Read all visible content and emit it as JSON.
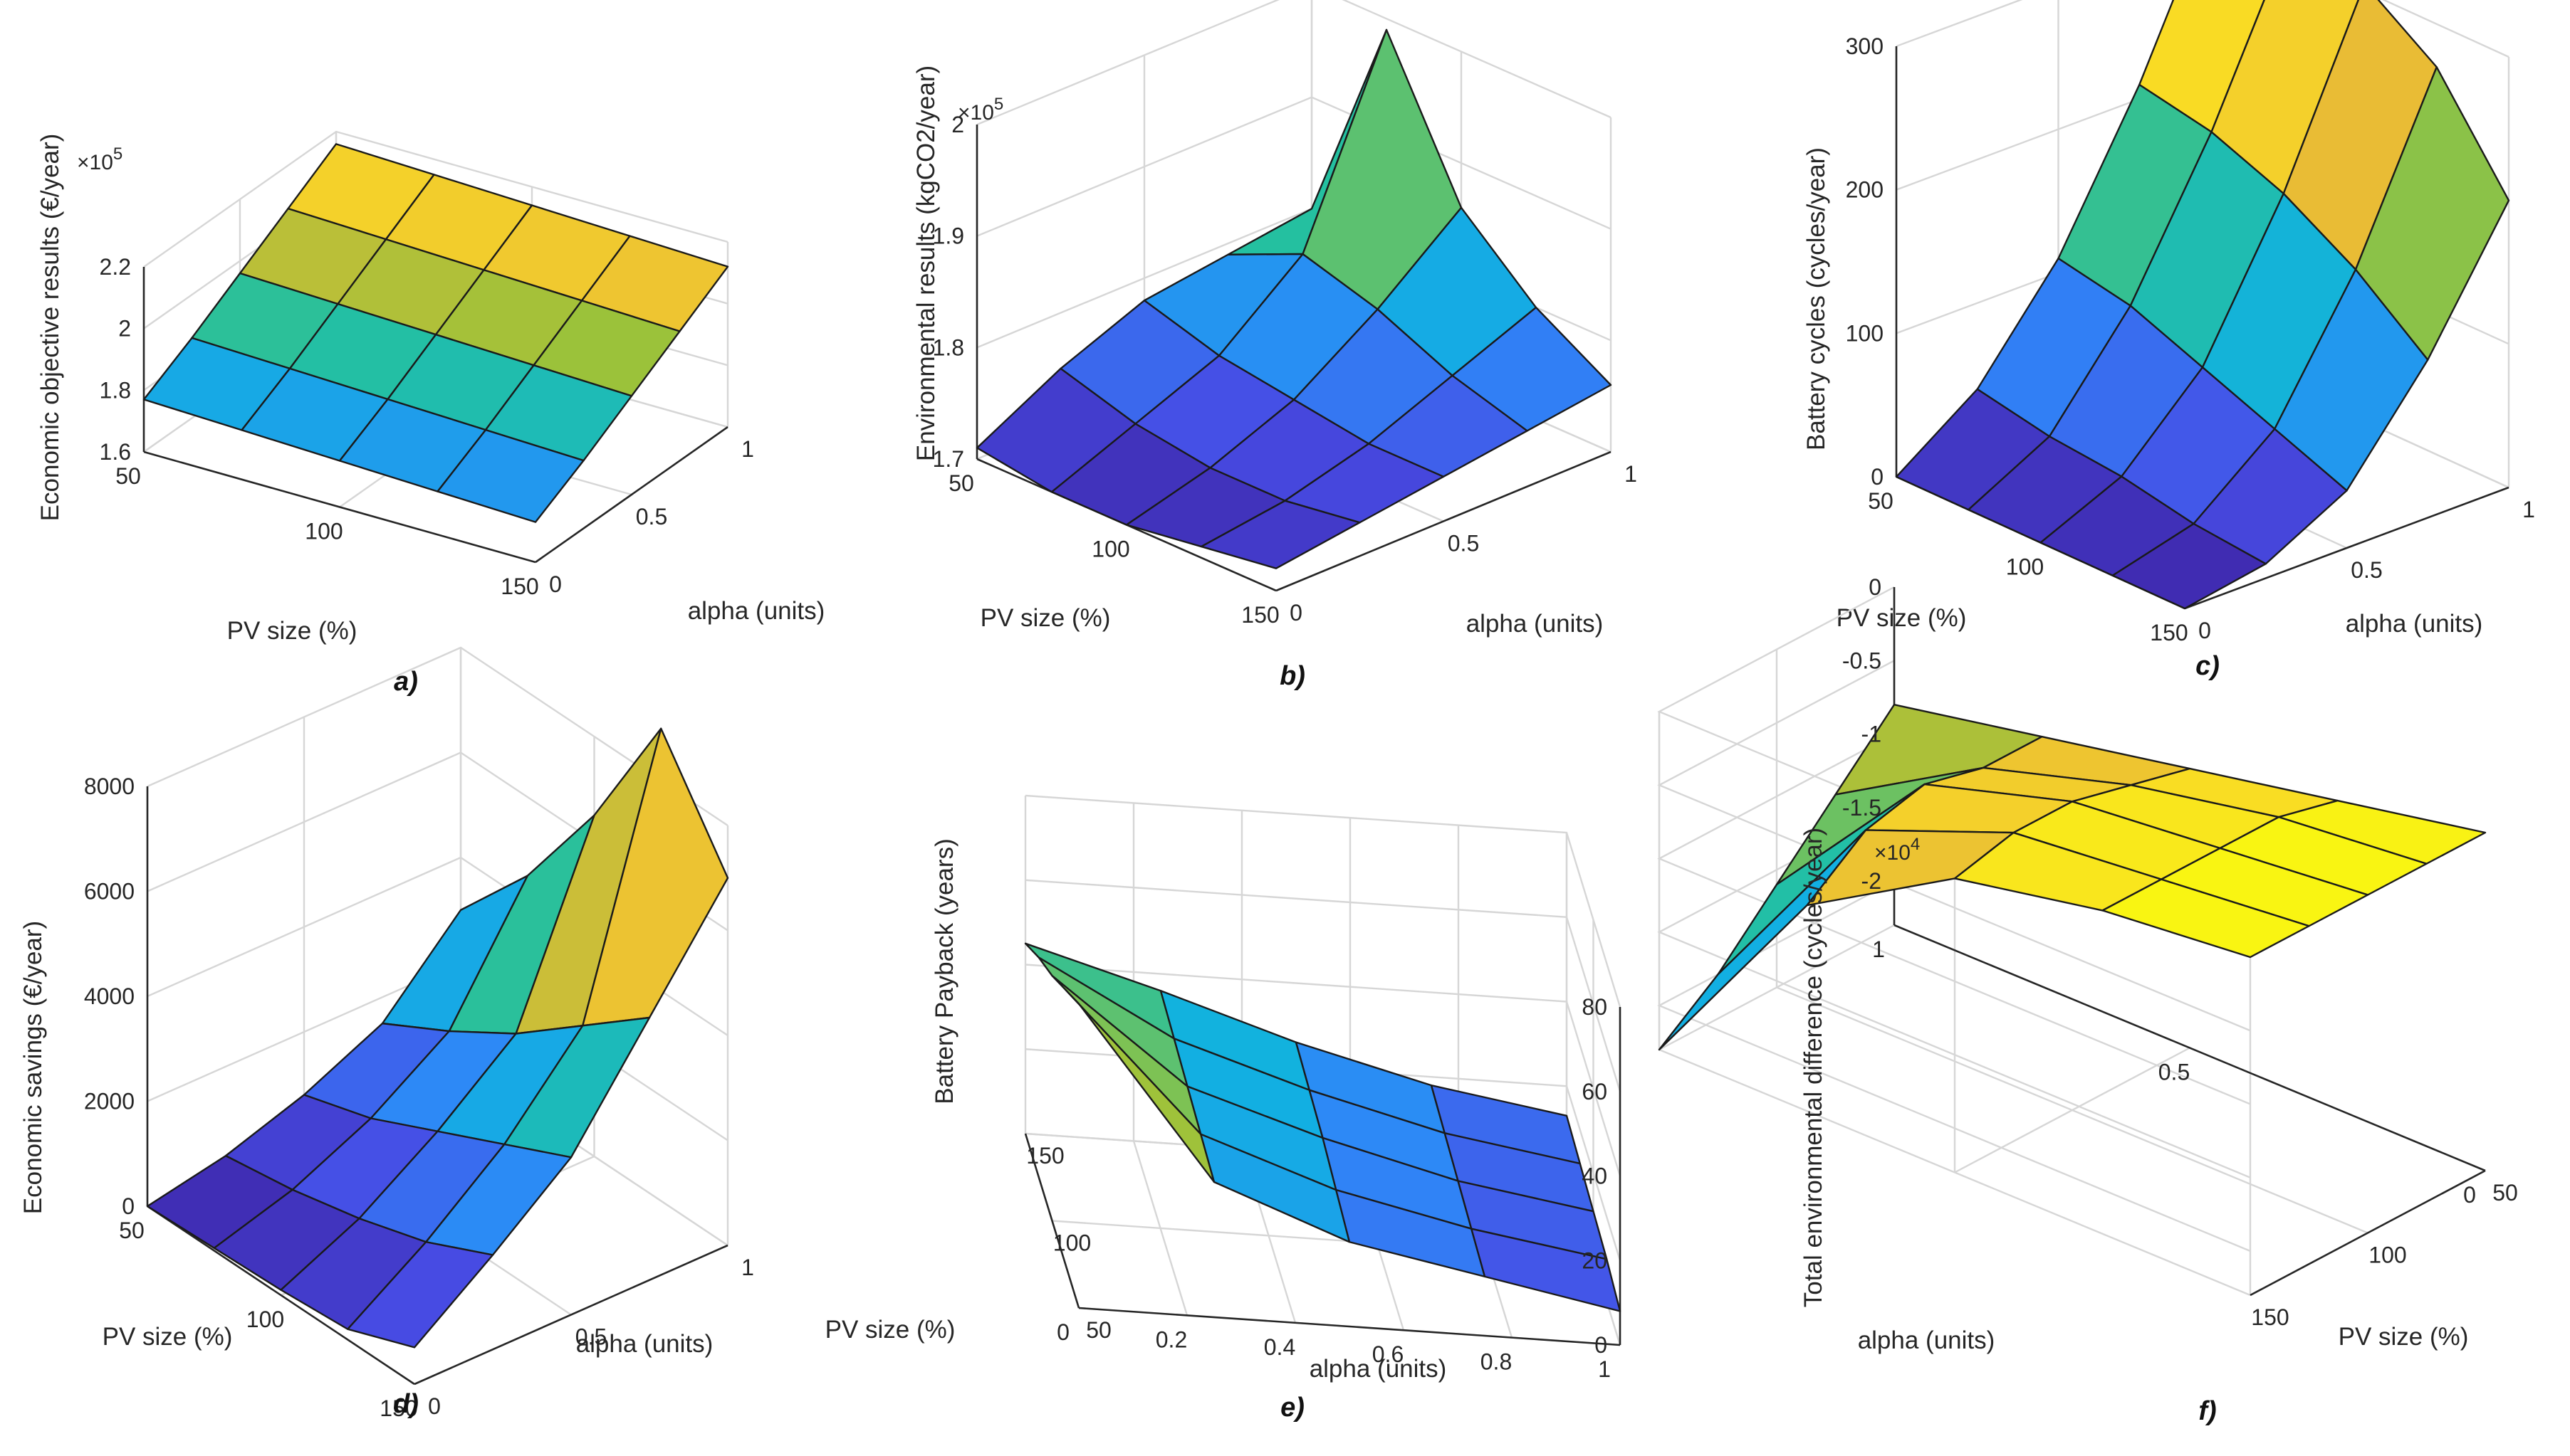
{
  "chart_data": [
    {
      "id": "a",
      "panel_label": "a)",
      "type": "surface",
      "title": "",
      "xlabel": "PV size (%)",
      "ylabel": "alpha (units)",
      "zlabel": "Economic objective results (€/year)",
      "exponent_base": "×10",
      "exponent_power": "5",
      "x_ticks": [
        "150",
        "100",
        "50"
      ],
      "y_ticks": [
        "0",
        "0.5",
        "1"
      ],
      "z_ticks": [
        "1.6",
        "1.8",
        "2",
        "2.2"
      ],
      "zlim": [
        1.6,
        2.2
      ],
      "grid": true,
      "colormap": "parula",
      "x": [
        150,
        125,
        100,
        75,
        50
      ],
      "y": [
        0,
        0.25,
        0.5,
        0.75,
        1
      ],
      "z": [
        [
          1.73,
          1.74,
          1.75,
          1.76,
          1.77
        ],
        [
          1.82,
          1.83,
          1.84,
          1.85,
          1.86
        ],
        [
          1.92,
          1.93,
          1.94,
          1.95,
          1.96
        ],
        [
          2.02,
          2.03,
          2.04,
          2.05,
          2.06
        ],
        [
          2.12,
          2.13,
          2.14,
          2.15,
          2.16
        ]
      ]
    },
    {
      "id": "b",
      "panel_label": "b)",
      "type": "surface",
      "xlabel": "PV size (%)",
      "ylabel": "alpha (units)",
      "zlabel": "Environmental results (kgCO2/year)",
      "exponent_base": "×10",
      "exponent_power": "5",
      "x_ticks": [
        "150",
        "100",
        "50"
      ],
      "y_ticks": [
        "0",
        "0.5",
        "1"
      ],
      "z_ticks": [
        "1.7",
        "1.8",
        "1.9",
        "2"
      ],
      "zlim": [
        1.7,
        2.0
      ],
      "grid": true,
      "colormap": "parula",
      "x": [
        150,
        125,
        100,
        75,
        50
      ],
      "y": [
        0,
        0.25,
        0.5,
        0.75,
        1
      ],
      "z": [
        [
          1.72,
          1.71,
          1.7,
          1.7,
          1.71
        ],
        [
          1.73,
          1.72,
          1.72,
          1.73,
          1.75
        ],
        [
          1.74,
          1.74,
          1.75,
          1.76,
          1.78
        ],
        [
          1.75,
          1.77,
          1.8,
          1.82,
          1.79
        ],
        [
          1.76,
          1.8,
          1.86,
          1.99,
          1.8
        ]
      ]
    },
    {
      "id": "c",
      "panel_label": "c)",
      "type": "surface",
      "xlabel": "PV size (%)",
      "ylabel": "alpha (units)",
      "zlabel": "Battery cycles (cycles/year)",
      "x_ticks": [
        "150",
        "100",
        "50"
      ],
      "y_ticks": [
        "0",
        "0.5",
        "1"
      ],
      "z_ticks": [
        "0",
        "100",
        "200",
        "300"
      ],
      "zlim": [
        0,
        300
      ],
      "grid": true,
      "colormap": "parula",
      "x": [
        150,
        125,
        100,
        75,
        50
      ],
      "y": [
        0,
        0.25,
        0.5,
        0.75,
        1
      ],
      "z": [
        [
          0,
          0,
          0,
          0,
          0
        ],
        [
          10,
          15,
          25,
          30,
          40
        ],
        [
          40,
          60,
          80,
          100,
          110
        ],
        [
          110,
          150,
          180,
          200,
          210
        ],
        [
          200,
          270,
          305,
          320,
          330
        ]
      ]
    },
    {
      "id": "d",
      "panel_label": "d)",
      "type": "surface",
      "xlabel": "PV size (%)",
      "ylabel": "alpha (units)",
      "zlabel": "Economic savings (€/year)",
      "x_ticks": [
        "150",
        "100",
        "50"
      ],
      "y_ticks": [
        "0",
        "0.5",
        "1"
      ],
      "z_ticks": [
        "0",
        "2000",
        "4000",
        "6000",
        "8000"
      ],
      "zlim": [
        0,
        8000
      ],
      "grid": true,
      "colormap": "parula",
      "x": [
        150,
        125,
        100,
        75,
        50
      ],
      "y": [
        0,
        0.25,
        0.5,
        0.75,
        1
      ],
      "z": [
        [
          700,
          200,
          100,
          50,
          0
        ],
        [
          1800,
          1200,
          800,
          500,
          300
        ],
        [
          3000,
          2400,
          1800,
          1200,
          800
        ],
        [
          5000,
          4000,
          3000,
          2200,
          1500
        ],
        [
          7000,
          9000,
          6500,
          4500,
          3000
        ]
      ]
    },
    {
      "id": "e",
      "panel_label": "e)",
      "type": "surface",
      "xlabel": "alpha (units)",
      "ylabel": "PV size (%)",
      "zlabel": "Battery Payback (years)",
      "x_ticks": [
        "0",
        "0.2",
        "0.4",
        "0.6",
        "0.8",
        "1"
      ],
      "y_ticks": [
        "50",
        "100",
        "150"
      ],
      "z_ticks": [
        "0",
        "20",
        "40",
        "60",
        "80"
      ],
      "zlim": [
        0,
        80
      ],
      "grid": true,
      "colormap": "parula",
      "x": [
        0,
        0.25,
        0.5,
        0.75,
        1
      ],
      "y": [
        50,
        75,
        100,
        125,
        150
      ],
      "z": [
        [
          72,
          32,
          20,
          14,
          8
        ],
        [
          65,
          33,
          22,
          15,
          10
        ],
        [
          58,
          34,
          24,
          16,
          11
        ],
        [
          52,
          35,
          25,
          17,
          12
        ],
        [
          45,
          36,
          26,
          18,
          13
        ]
      ]
    },
    {
      "id": "f",
      "panel_label": "f)",
      "type": "surface",
      "xlabel": "alpha (units)",
      "ylabel": "PV size (%)",
      "zlabel": "Total environmental difference (cycles/year)",
      "exponent_base": "×10",
      "exponent_power": "4",
      "x_ticks": [
        "0",
        "0.5",
        "1"
      ],
      "y_ticks": [
        "50",
        "100",
        "150"
      ],
      "z_ticks": [
        "-2",
        "-1.5",
        "-1",
        "-0.5",
        "0"
      ],
      "zlim": [
        -2.3,
        0
      ],
      "grid": true,
      "colormap": "parula",
      "x": [
        0,
        0.25,
        0.5,
        0.75,
        1
      ],
      "y": [
        50,
        75,
        100,
        125,
        150
      ],
      "z": [
        [
          0,
          -0.2,
          -0.4,
          -0.6,
          -0.8
        ],
        [
          0,
          -0.1,
          -0.3,
          -0.6,
          -1.2
        ],
        [
          0,
          -0.1,
          -0.2,
          -0.5,
          -1.6
        ],
        [
          0,
          -0.1,
          -0.2,
          -0.6,
          -2.0
        ],
        [
          0,
          -0.1,
          -0.3,
          -0.9,
          -2.3
        ]
      ]
    }
  ]
}
